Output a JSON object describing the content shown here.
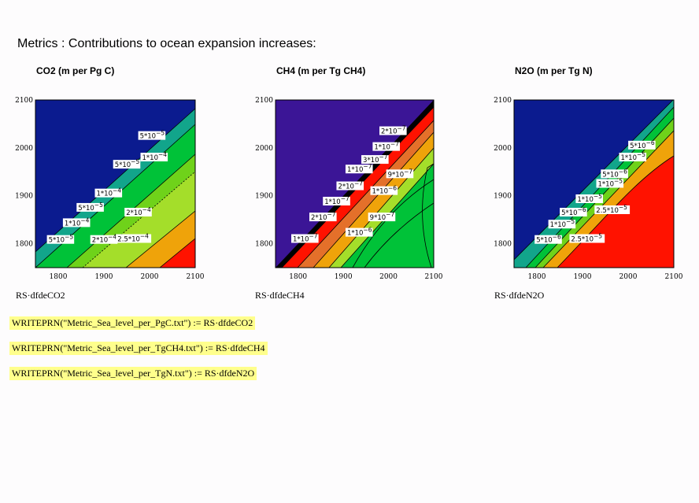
{
  "page": {
    "title": "Metrics : Contributions to ocean expansion increases:"
  },
  "write_statements": [
    "WRITEPRN(\"Metric_Sea_level_per_PgC.txt\")  := RS·dfdeCO2",
    "WRITEPRN(\"Metric_Sea_level_per_TgCH4.txt\")  := RS·dfdeCH4",
    "WRITEPRN(\"Metric_Sea_level_per_TgN.txt\")  := RS·dfdeN2O"
  ],
  "colors": {
    "dark_blue": "#0b1b8f",
    "indigo": "#3b1596",
    "teal": "#12a58b",
    "green": "#00c238",
    "light_green": "#6fd21a",
    "lime": "#a4de2a",
    "orange": "#efa30a",
    "dark_orange": "#e4702a",
    "red": "#ff1200",
    "black": "#000000",
    "write_highlight": "#ffff8c"
  },
  "chart_data": [
    {
      "type": "contour",
      "title": "CO2 (m per Pg C)",
      "expression": "RS·dfdeCO2",
      "xlim": [
        1750,
        2100
      ],
      "ylim": [
        1750,
        2100
      ],
      "xticks": [
        "1800",
        "1900",
        "2000",
        "2100"
      ],
      "yticks": [
        "1800",
        "1900",
        "2000",
        "2100"
      ],
      "contour_labels": [
        {
          "base": "5*10",
          "exp": "−5",
          "x": 2005,
          "y": 2025
        },
        {
          "base": "1*10",
          "exp": "−4",
          "x": 2010,
          "y": 1980
        },
        {
          "base": "5*10",
          "exp": "−5",
          "x": 1950,
          "y": 1965
        },
        {
          "base": "1*10",
          "exp": "−4",
          "x": 1910,
          "y": 1905
        },
        {
          "base": "5*10",
          "exp": "−5",
          "x": 1870,
          "y": 1875
        },
        {
          "base": "1*10",
          "exp": "−4",
          "x": 1840,
          "y": 1843
        },
        {
          "base": "5*10",
          "exp": "−5",
          "x": 1805,
          "y": 1808
        },
        {
          "base": "2*10",
          "exp": "−4",
          "x": 1975,
          "y": 1865
        },
        {
          "base": "2*10",
          "exp": "−4",
          "x": 1900,
          "y": 1808
        },
        {
          "base": "2.5*10",
          "exp": "−4",
          "x": 1965,
          "y": 1810
        }
      ]
    },
    {
      "type": "contour",
      "title": "CH4 (m per Tg CH4)",
      "expression": "RS·dfdeCH4",
      "xlim": [
        1750,
        2100
      ],
      "ylim": [
        1750,
        2100
      ],
      "xticks": [
        "1800",
        "1900",
        "2000",
        "2100"
      ],
      "yticks": [
        "1800",
        "1900",
        "2000",
        "2100"
      ],
      "contour_labels": [
        {
          "base": "2*10",
          "exp": "−7",
          "x": 2010,
          "y": 2035
        },
        {
          "base": "1*10",
          "exp": "−7",
          "x": 1995,
          "y": 2002
        },
        {
          "base": "3*10",
          "exp": "−7",
          "x": 1970,
          "y": 1975
        },
        {
          "base": "1*10",
          "exp": "−7",
          "x": 1935,
          "y": 1955
        },
        {
          "base": "2*10",
          "exp": "−7",
          "x": 1915,
          "y": 1920
        },
        {
          "base": "1*10",
          "exp": "−7",
          "x": 1885,
          "y": 1888
        },
        {
          "base": "2*10",
          "exp": "−7",
          "x": 1855,
          "y": 1855
        },
        {
          "base": "1*10",
          "exp": "−7",
          "x": 1815,
          "y": 1810
        },
        {
          "base": "9*10",
          "exp": "−7",
          "x": 2025,
          "y": 1945
        },
        {
          "base": "1*10",
          "exp": "−6",
          "x": 1990,
          "y": 1910
        },
        {
          "base": "9*10",
          "exp": "−7",
          "x": 1985,
          "y": 1855
        },
        {
          "base": "1*10",
          "exp": "−6",
          "x": 1935,
          "y": 1823
        }
      ]
    },
    {
      "type": "contour",
      "title": "N2O (m per Tg N)",
      "expression": "RS·dfdeN2O",
      "xlim": [
        1750,
        2100
      ],
      "ylim": [
        1750,
        2100
      ],
      "xticks": [
        "1800",
        "1900",
        "2000",
        "2100"
      ],
      "yticks": [
        "1800",
        "1900",
        "2000",
        "2100"
      ],
      "contour_labels": [
        {
          "base": "5*10",
          "exp": "−6",
          "x": 2030,
          "y": 2005
        },
        {
          "base": "1*10",
          "exp": "−5",
          "x": 2010,
          "y": 1980
        },
        {
          "base": "5*10",
          "exp": "−6",
          "x": 1970,
          "y": 1945
        },
        {
          "base": "1*10",
          "exp": "−5",
          "x": 1960,
          "y": 1925
        },
        {
          "base": "1*10",
          "exp": "−5",
          "x": 1915,
          "y": 1893
        },
        {
          "base": "5*10",
          "exp": "−6",
          "x": 1880,
          "y": 1865
        },
        {
          "base": "1*10",
          "exp": "−5",
          "x": 1855,
          "y": 1840
        },
        {
          "base": "5*10",
          "exp": "−6",
          "x": 1825,
          "y": 1808
        },
        {
          "base": "2.5*10",
          "exp": "−5",
          "x": 1965,
          "y": 1870
        },
        {
          "base": "2.5*10",
          "exp": "−5",
          "x": 1910,
          "y": 1810
        }
      ]
    }
  ]
}
